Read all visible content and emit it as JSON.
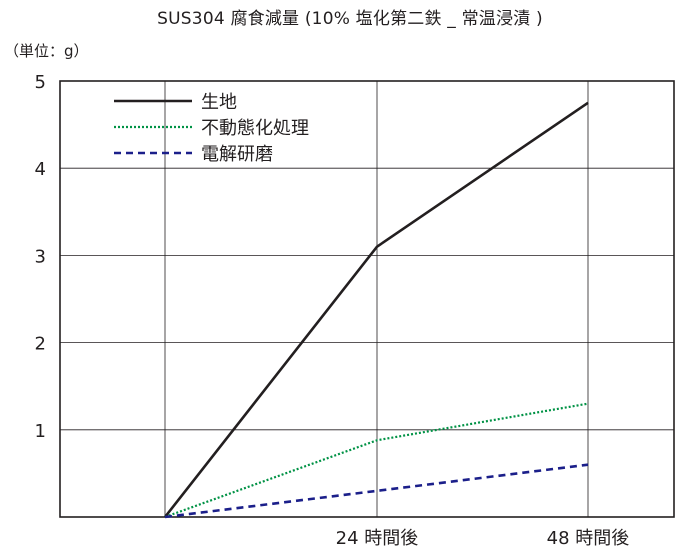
{
  "chart_data": {
    "type": "line",
    "title": "SUS304 腐食減量 (10% 塩化第二鉄 _ 常温浸漬 )",
    "ylabel": "（単位：g）",
    "xlabel": "",
    "x_labels": [
      "",
      "24 時間後",
      "48 時間後"
    ],
    "y_ticks": [
      1,
      2,
      3,
      4,
      5
    ],
    "ylim": [
      0,
      5
    ],
    "grid": true,
    "legend_position": "top-left",
    "series": [
      {
        "name": "生地",
        "values": [
          0,
          3.1,
          4.75
        ],
        "color": "#231f20",
        "style": "solid"
      },
      {
        "name": "不動態化処理",
        "values": [
          0,
          0.88,
          1.3
        ],
        "color": "#009245",
        "style": "dotted"
      },
      {
        "name": "電解研磨",
        "values": [
          0,
          0.3,
          0.6
        ],
        "color": "#1b1f8a",
        "style": "dashed"
      }
    ]
  }
}
